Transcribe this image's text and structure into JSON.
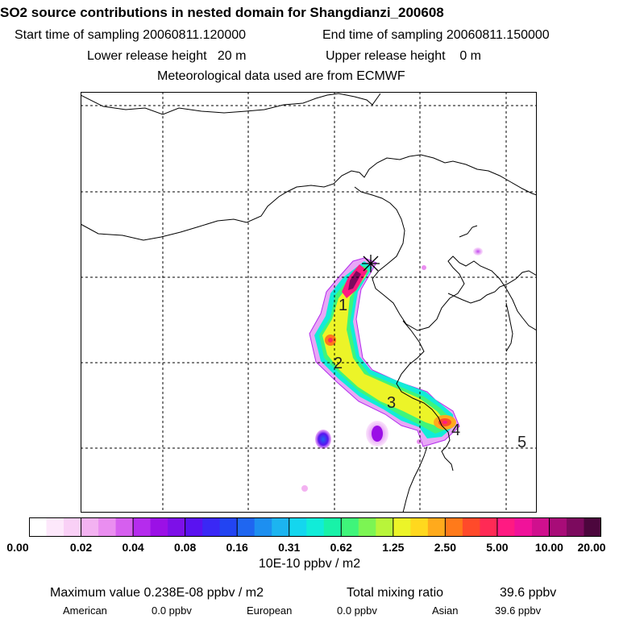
{
  "header": {
    "title": "SO2 source contributions in nested domain for Shangdianzi_200608",
    "start_label": "Start time of sampling 20060811.120000",
    "end_label": "End time of sampling 20060811.150000",
    "lower_label": "Lower release height   20 m",
    "upper_label": "Upper release height    0 m",
    "met_label": "Meteorological data used are from ECMWF"
  },
  "map": {
    "markers": [
      "1",
      "2",
      "3",
      "4",
      "5"
    ],
    "station_symbol": "✕"
  },
  "colorbar": {
    "tick_labels": [
      "0.00",
      "0.02",
      "0.04",
      "0.08",
      "0.16",
      "0.31",
      "0.62",
      "1.25",
      "2.50",
      "5.00",
      "10.00",
      "20.00"
    ],
    "units": "10E-10 ppbv / m2",
    "colors": [
      "#ffffff",
      "#fde8fb",
      "#f9d0f6",
      "#f3b2f1",
      "#ea8ef0",
      "#d65fef",
      "#b52ced",
      "#9b10e6",
      "#7d10e8",
      "#5a12f0",
      "#3a28f5",
      "#2244f2",
      "#1f66f0",
      "#1d8ff0",
      "#1cb4f0",
      "#14d6ee",
      "#11ecd8",
      "#18f2a8",
      "#3ff57a",
      "#7cf553",
      "#b8f53a",
      "#ecf428",
      "#ffd81e",
      "#ffaa1c",
      "#ff7a1a",
      "#ff4a2a",
      "#ff2a55",
      "#ff1a82",
      "#f0129a",
      "#d0108e",
      "#a80c78",
      "#7c0a5e",
      "#4c063d"
    ]
  },
  "footer": {
    "max_label": "Maximum value  0.238E-08 ppbv / m2",
    "total_label": "Total mixing ratio",
    "total_value": "39.6 ppbv",
    "american_label": "American",
    "american_value": "0.0 ppbv",
    "european_label": "European",
    "european_value": "0.0 ppbv",
    "asian_label": "Asian",
    "asian_value": "39.6 ppbv"
  }
}
